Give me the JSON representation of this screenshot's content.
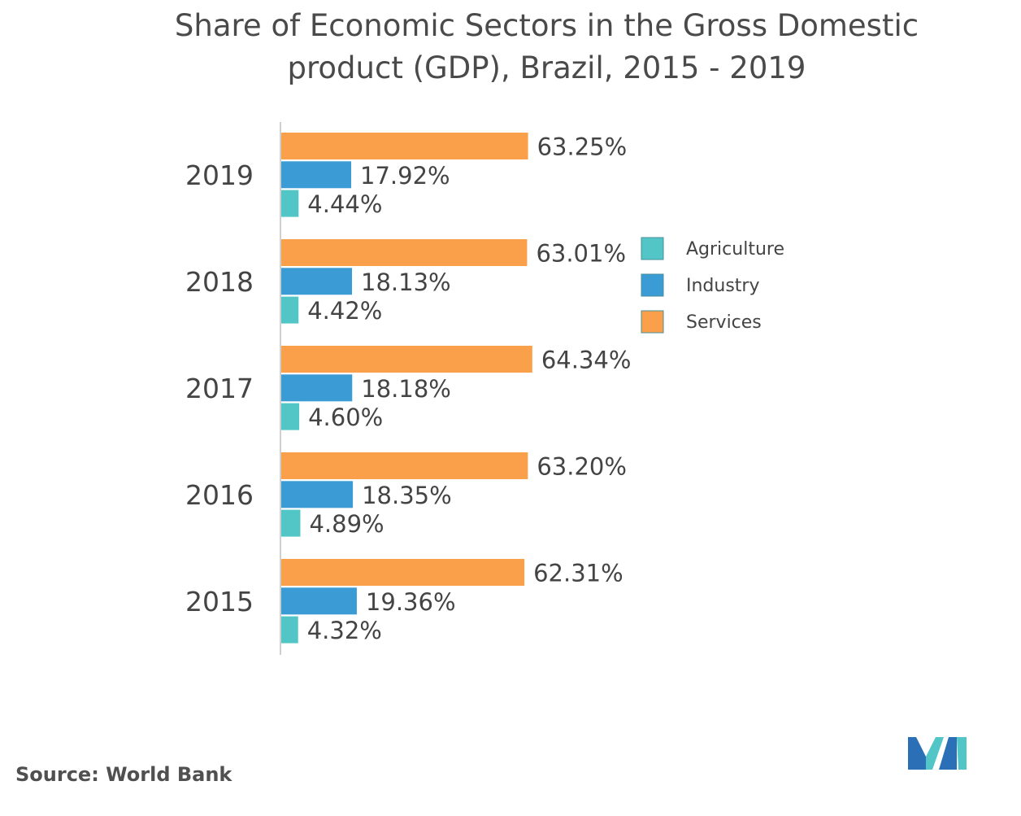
{
  "colors": {
    "Agriculture": "#52c6c6",
    "Industry": "#3b9bd4",
    "Services": "#fba04a",
    "text": "#444444",
    "axis": "#cfcfcf"
  },
  "footer": {
    "source": "Source: World Bank"
  },
  "logo": {
    "icon": "brand-logo-icon"
  },
  "chart_data": {
    "type": "bar",
    "orientation": "horizontal",
    "title": "Share of Economic Sectors in the Gross Domestic product (GDP), Brazil, 2015 - 2019",
    "categories": [
      "2019",
      "2018",
      "2017",
      "2016",
      "2015"
    ],
    "series": [
      {
        "name": "Services",
        "values": [
          63.25,
          63.01,
          64.34,
          63.2,
          62.31
        ],
        "labels": [
          "63.25%",
          "63.01%",
          "64.34%",
          "63.20%",
          "62.31%"
        ]
      },
      {
        "name": "Industry",
        "values": [
          17.92,
          18.13,
          18.18,
          18.35,
          19.36
        ],
        "labels": [
          "17.92%",
          "18.13%",
          "18.18%",
          "18.35%",
          "19.36%"
        ]
      },
      {
        "name": "Agriculture",
        "values": [
          4.44,
          4.42,
          4.6,
          4.89,
          4.32
        ],
        "labels": [
          "4.44%",
          "4.42%",
          "4.60%",
          "4.89%",
          "4.32%"
        ]
      }
    ],
    "legend": {
      "position": "right",
      "entries": [
        "Agriculture",
        "Industry",
        "Services"
      ]
    },
    "xlabel": "",
    "ylabel": "",
    "xlim": [
      0,
      100
    ],
    "grid": false
  }
}
